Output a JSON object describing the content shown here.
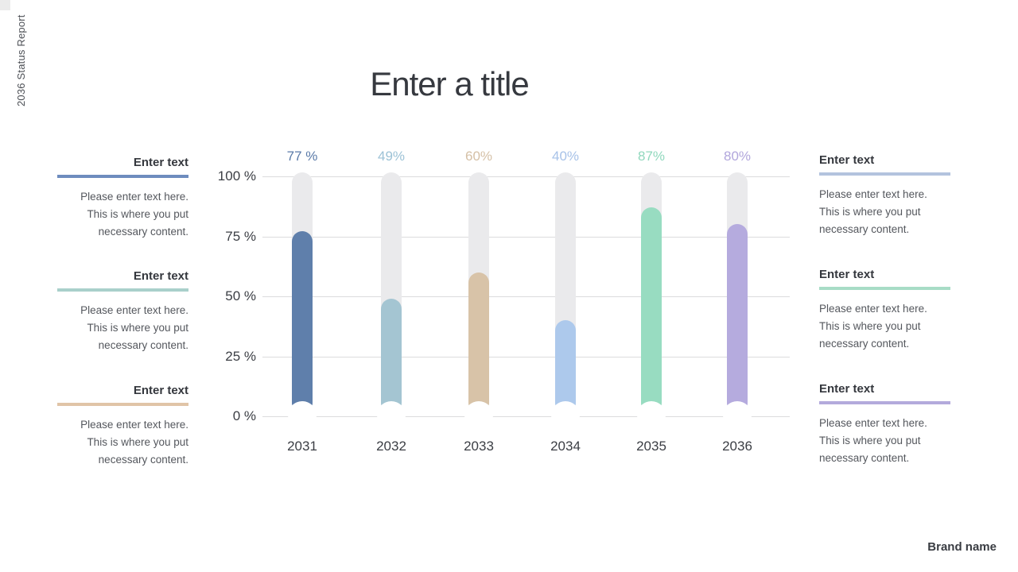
{
  "side_label": "2036 Status Report",
  "title": "Enter a title",
  "brand": "Brand name",
  "placeholder_body_lines": [
    "Please enter text here.",
    "This is where you put",
    "necessary content."
  ],
  "left_blocks": [
    {
      "heading": "Enter text",
      "accent_color": "#6e8cbe",
      "body_lines": [
        "Please enter text here.",
        "This is where you put",
        "necessary content."
      ]
    },
    {
      "heading": "Enter text",
      "accent_color": "#a9d0cb",
      "body_lines": [
        "Please enter text here.",
        "This is where you put",
        "necessary content."
      ]
    },
    {
      "heading": "Enter text",
      "accent_color": "#e0c4a7",
      "body_lines": [
        "Please enter text here.",
        "This is where you put",
        "necessary content."
      ]
    }
  ],
  "right_blocks": [
    {
      "heading": "Enter text",
      "accent_color": "#b3c3de",
      "body_lines": [
        "Please enter text here.",
        "This is where you put",
        "necessary content."
      ]
    },
    {
      "heading": "Enter text",
      "accent_color": "#a8dcc6",
      "body_lines": [
        "Please enter text here.",
        "This is where you put",
        "necessary content."
      ]
    },
    {
      "heading": "Enter text",
      "accent_color": "#b3aadc",
      "body_lines": [
        "Please enter text here.",
        "This is where you put",
        "necessary content."
      ]
    }
  ],
  "chart_data": {
    "type": "bar",
    "title": "",
    "xlabel": "",
    "ylabel": "",
    "categories": [
      "2031",
      "2032",
      "2033",
      "2034",
      "2035",
      "2036"
    ],
    "values": [
      77,
      49,
      60,
      40,
      87,
      80
    ],
    "value_labels": [
      "77 %",
      "49%",
      "60%",
      "40%",
      "87%",
      "80%"
    ],
    "bar_colors": [
      "#5f7fab",
      "#a4c5d2",
      "#d8c3a8",
      "#adc9ec",
      "#98dcc1",
      "#b5abde"
    ],
    "label_colors": [
      "#5a7aa8",
      "#9cc2d6",
      "#d5c0a6",
      "#a7c2e8",
      "#90d8bd",
      "#b1a6dc"
    ],
    "track_color": "#eaeaec",
    "grid_color": "#dcdcdd",
    "ylim": [
      0,
      100
    ],
    "yticks": {
      "values": [
        0,
        25,
        50,
        75,
        100
      ],
      "labels": [
        "0 %",
        "25 %",
        "50 %",
        "75 %",
        "100 %"
      ]
    },
    "grid": true,
    "legend_position": "none"
  }
}
